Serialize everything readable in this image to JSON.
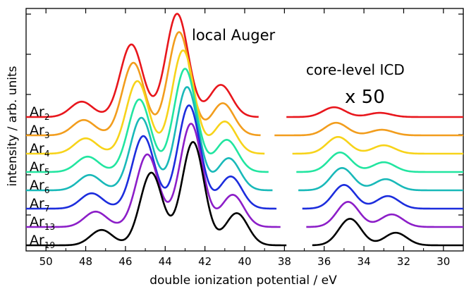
{
  "chart_data": {
    "type": "line",
    "xlabel": "double ionization potential / eV",
    "ylabel": "intensity / arb. units",
    "xlim": [
      51,
      29
    ],
    "x_ticks": [
      50,
      48,
      46,
      44,
      42,
      40,
      38,
      36,
      34,
      32,
      30
    ],
    "x_axis_reversed": true,
    "y_ticks_labeled": false,
    "grid": false,
    "annotations": [
      {
        "text": "local Auger",
        "near_x": 41.5
      },
      {
        "text": "core-level ICD",
        "near_x": 33.6
      },
      {
        "text": "x 50",
        "near_x": 33.6
      }
    ],
    "series": [
      {
        "name": "Ar2",
        "label_base": "Ar",
        "label_sub": "2",
        "color": "#e8161c",
        "auger": {
          "x_end": 39.3,
          "peaks": [
            [
              48.2,
              0.11
            ],
            [
              45.7,
              0.52
            ],
            [
              43.4,
              0.74
            ],
            [
              41.2,
              0.23
            ]
          ]
        },
        "icd": {
          "x_start": 37.9,
          "peaks": [
            [
              35.5,
              0.07
            ],
            [
              33.2,
              0.03
            ]
          ]
        }
      },
      {
        "name": "Ar3",
        "label_base": "Ar",
        "label_sub": "3",
        "color": "#f29d1d",
        "auger": {
          "x_end": 39.2,
          "peaks": [
            [
              48.1,
              0.11
            ],
            [
              45.6,
              0.52
            ],
            [
              43.3,
              0.74
            ],
            [
              41.1,
              0.23
            ]
          ]
        },
        "icd": {
          "x_start": null,
          "peaks": [
            [
              35.4,
              0.09
            ],
            [
              33.1,
              0.04
            ]
          ]
        }
      },
      {
        "name": "Ar4",
        "label_base": "Ar",
        "label_sub": "4",
        "color": "#f7d31a",
        "auger": {
          "x_end": 39.0,
          "peaks": [
            [
              48.0,
              0.11
            ],
            [
              45.4,
              0.52
            ],
            [
              43.1,
              0.74
            ],
            [
              41.0,
              0.23
            ]
          ]
        },
        "icd": {
          "x_start": 37.6,
          "peaks": [
            [
              35.3,
              0.12
            ],
            [
              33.0,
              0.06
            ]
          ]
        }
      },
      {
        "name": "Ar5",
        "label_base": "Ar",
        "label_sub": "5",
        "color": "#22e5a0",
        "auger": {
          "x_end": 38.8,
          "peaks": [
            [
              47.9,
              0.11
            ],
            [
              45.3,
              0.52
            ],
            [
              43.0,
              0.74
            ],
            [
              40.9,
              0.23
            ]
          ]
        },
        "icd": {
          "x_start": 37.4,
          "peaks": [
            [
              35.2,
              0.14
            ],
            [
              33.0,
              0.07
            ]
          ]
        }
      },
      {
        "name": "Ar6",
        "label_base": "Ar",
        "label_sub": "6",
        "color": "#19b9b9",
        "auger": {
          "x_end": 38.6,
          "peaks": [
            [
              47.8,
              0.11
            ],
            [
              45.2,
              0.52
            ],
            [
              42.9,
              0.74
            ],
            [
              40.8,
              0.23
            ]
          ]
        },
        "icd": {
          "x_start": 37.3,
          "peaks": [
            [
              35.1,
              0.16
            ],
            [
              32.9,
              0.08
            ]
          ]
        }
      },
      {
        "name": "Ar7",
        "label_base": "Ar",
        "label_sub": "7",
        "color": "#1c2ddd",
        "auger": {
          "x_end": 38.4,
          "peaks": [
            [
              47.7,
              0.11
            ],
            [
              45.1,
              0.52
            ],
            [
              42.8,
              0.74
            ],
            [
              40.7,
              0.23
            ]
          ]
        },
        "icd": {
          "x_start": 37.1,
          "peaks": [
            [
              35.0,
              0.17
            ],
            [
              32.8,
              0.09
            ]
          ]
        }
      },
      {
        "name": "Ar13",
        "label_base": "Ar",
        "label_sub": "13",
        "color": "#8c1ec8",
        "auger": {
          "x_end": 38.2,
          "peaks": [
            [
              47.5,
              0.11
            ],
            [
              44.9,
              0.52
            ],
            [
              42.7,
              0.74
            ],
            [
              40.6,
              0.23
            ]
          ]
        },
        "icd": {
          "x_start": 36.9,
          "peaks": [
            [
              34.8,
              0.18
            ],
            [
              32.6,
              0.09
            ]
          ]
        }
      },
      {
        "name": "Ar19",
        "label_base": "Ar",
        "label_sub": "19",
        "color": "#000000",
        "auger": {
          "x_end": 37.9,
          "peaks": [
            [
              47.2,
              0.11
            ],
            [
              44.7,
              0.52
            ],
            [
              42.6,
              0.74
            ],
            [
              40.4,
              0.23
            ]
          ]
        },
        "icd": {
          "x_start": 36.6,
          "peaks": [
            [
              34.7,
              0.19
            ],
            [
              32.4,
              0.09
            ]
          ]
        }
      }
    ]
  }
}
